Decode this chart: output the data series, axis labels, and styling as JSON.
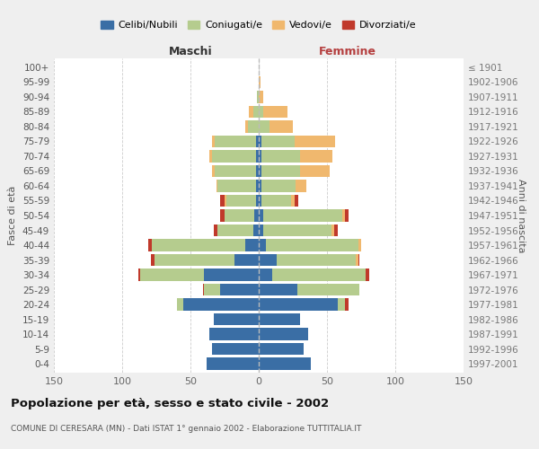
{
  "title": "Popolazione per età, sesso e stato civile - 2002",
  "subtitle": "COMUNE DI CERESARA (MN) - Dati ISTAT 1° gennaio 2002 - Elaborazione TUTTITALIA.IT",
  "left_label": "Maschi",
  "right_label": "Femmine",
  "ylabel_left": "Fasce di età",
  "ylabel_right": "Anni di nascita",
  "legend_labels": [
    "Celibi/Nubili",
    "Coniugati/e",
    "Vedovi/e",
    "Divorziati/e"
  ],
  "colors": [
    "#3a6ea5",
    "#b5cc8e",
    "#f0b86e",
    "#c0392b"
  ],
  "age_groups": [
    "0-4",
    "5-9",
    "10-14",
    "15-19",
    "20-24",
    "25-29",
    "30-34",
    "35-39",
    "40-44",
    "45-49",
    "50-54",
    "55-59",
    "60-64",
    "65-69",
    "70-74",
    "75-79",
    "80-84",
    "85-89",
    "90-94",
    "95-99",
    "100+"
  ],
  "birth_years": [
    "1997-2001",
    "1992-1996",
    "1987-1991",
    "1982-1986",
    "1977-1981",
    "1972-1976",
    "1967-1971",
    "1962-1966",
    "1957-1961",
    "1952-1956",
    "1947-1951",
    "1942-1946",
    "1937-1941",
    "1932-1936",
    "1927-1931",
    "1922-1926",
    "1917-1921",
    "1912-1916",
    "1907-1911",
    "1902-1906",
    "≤ 1901"
  ],
  "males": {
    "celibi": [
      38,
      34,
      36,
      33,
      55,
      28,
      40,
      18,
      10,
      4,
      3,
      2,
      2,
      2,
      2,
      2,
      0,
      0,
      0,
      0,
      0
    ],
    "coniugati": [
      0,
      0,
      0,
      0,
      5,
      12,
      47,
      58,
      68,
      26,
      22,
      22,
      28,
      30,
      32,
      30,
      8,
      4,
      1,
      0,
      0
    ],
    "vedovi": [
      0,
      0,
      0,
      0,
      0,
      0,
      0,
      0,
      0,
      0,
      0,
      1,
      1,
      2,
      2,
      2,
      2,
      3,
      0,
      0,
      0
    ],
    "divorziati": [
      0,
      0,
      0,
      0,
      0,
      1,
      1,
      3,
      3,
      3,
      3,
      3,
      0,
      0,
      0,
      0,
      0,
      0,
      0,
      0,
      0
    ]
  },
  "females": {
    "nubili": [
      38,
      33,
      36,
      30,
      58,
      28,
      10,
      13,
      5,
      3,
      3,
      2,
      2,
      2,
      2,
      2,
      0,
      0,
      0,
      0,
      0
    ],
    "coniugate": [
      0,
      0,
      0,
      0,
      5,
      46,
      68,
      58,
      68,
      50,
      58,
      22,
      25,
      28,
      28,
      24,
      8,
      3,
      0,
      0,
      0
    ],
    "vedove": [
      0,
      0,
      0,
      0,
      0,
      0,
      0,
      2,
      2,
      2,
      2,
      2,
      8,
      22,
      24,
      30,
      17,
      18,
      3,
      1,
      0
    ],
    "divorziate": [
      0,
      0,
      0,
      0,
      3,
      0,
      3,
      1,
      0,
      3,
      3,
      3,
      0,
      0,
      0,
      0,
      0,
      0,
      0,
      0,
      0
    ]
  },
  "xlim": 150,
  "bg_color": "#efefef",
  "plot_bg": "#ffffff",
  "grid_color": "#cccccc"
}
